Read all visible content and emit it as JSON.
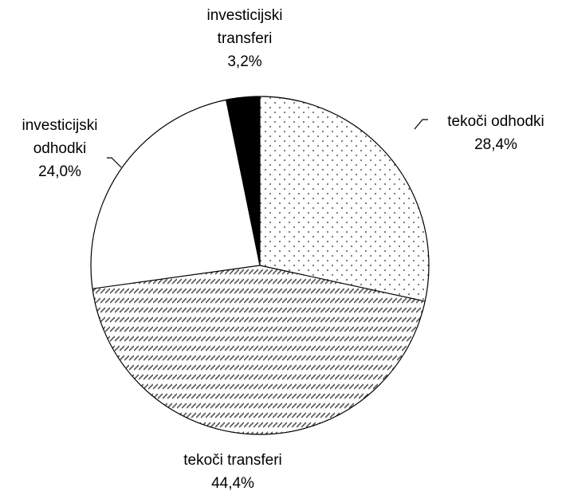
{
  "chart_data": {
    "type": "pie",
    "categories": [
      "tekoči odhodki",
      "tekoči transferi",
      "investicijski odhodki",
      "investicijski transferi"
    ],
    "values": [
      28.4,
      44.4,
      24.0,
      3.2
    ],
    "value_labels": [
      "28,4%",
      "44,4%",
      "24,0%",
      "3,2%"
    ],
    "colors": [
      "#ffffff",
      "#ffffff",
      "#ffffff",
      "#000000"
    ],
    "patterns": [
      "dots",
      "diagonal",
      "none",
      "none"
    ]
  }
}
